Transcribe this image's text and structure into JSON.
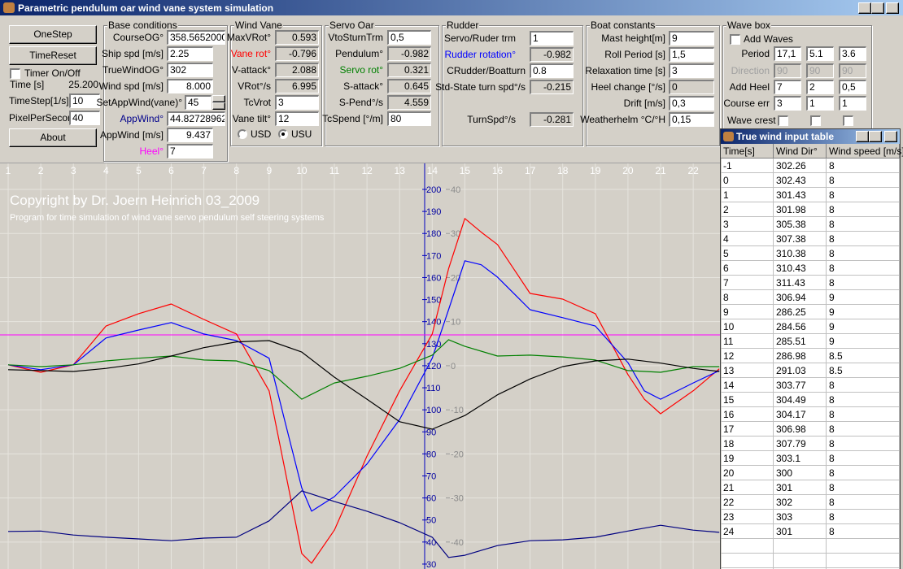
{
  "window_title": "Parametric pendulum oar wind vane system simulation",
  "controls": {
    "buttons": [
      "OneStep",
      "TimeReset",
      "About"
    ],
    "timer": "Timer On/Off",
    "time": {
      "label": "Time [s]",
      "value": "25.200"
    },
    "timestep": {
      "label": "TimeStep[1/s]",
      "value": "10"
    },
    "pixel_per_second": {
      "label": "PixelPerSecond",
      "value": "40"
    }
  },
  "groups": [
    {
      "title": "Base conditions",
      "fields": [
        {
          "label": "CourseOG°",
          "value": "358.5652000"
        },
        {
          "label": "Ship spd [m/s]",
          "value": "2.25"
        },
        {
          "label": "TrueWindOG°",
          "value": "302"
        },
        {
          "label": "Wind spd [m/s]",
          "value": "8.000"
        },
        {
          "label": "SetAppWind(vane)°",
          "value": "45"
        },
        {
          "label": "AppWind°",
          "value": "44.82728962"
        },
        {
          "label": "AppWind [m/s]",
          "value": "9.437"
        },
        {
          "label": "Heel°",
          "value": "7"
        }
      ]
    },
    {
      "title": "Wind Vane",
      "fields": [
        {
          "label": "MaxVRot°",
          "value": "0.593"
        },
        {
          "label": "Vane rot°",
          "value": "-0.796"
        },
        {
          "label": "V-attack°",
          "value": "2.088"
        },
        {
          "label": "VRot°/s",
          "value": "6.995"
        },
        {
          "label": "TcVrot",
          "value": "3"
        },
        {
          "label": "Vane tilt°",
          "value": "12"
        }
      ],
      "radios": [
        "USD",
        "USU"
      ]
    },
    {
      "title": "Servo Oar",
      "fields": [
        {
          "label": "VtoSturnTrm",
          "value": "0,5"
        },
        {
          "label": "Pendulum°",
          "value": "-0.982"
        },
        {
          "label": "Servo rot°",
          "value": "0.321"
        },
        {
          "label": "S-attack°",
          "value": "0.645"
        },
        {
          "label": "S-Pend°/s",
          "value": "4.559"
        },
        {
          "label": "TcSpend [°/m]",
          "value": "80"
        }
      ]
    },
    {
      "title": "Rudder",
      "fields": [
        {
          "label": "Servo/Ruder trm",
          "value": "1"
        },
        {
          "label": "Rudder rotation°",
          "value": "-0.982"
        },
        {
          "label": "CRudder/Boatturn",
          "value": "0.8"
        },
        {
          "label": "Std-State turn spd°/s",
          "value": "-0.215"
        },
        {
          "label": "TurnSpd°/s",
          "value": "-0.281"
        }
      ]
    },
    {
      "title": "Boat constants",
      "fields": [
        {
          "label": "Mast height[m]",
          "value": "9"
        },
        {
          "label": "Roll Period [s]",
          "value": "1,5"
        },
        {
          "label": "Relaxation time [s]",
          "value": "3"
        },
        {
          "label": "Heel change [°/s]",
          "value": "0"
        },
        {
          "label": "Drift [m/s]",
          "value": "0,3"
        },
        {
          "label": "Weatherhelm °C/°H",
          "value": "0,15"
        }
      ]
    }
  ],
  "wave_box": {
    "title": "Wave box",
    "add_waves": "Add Waves",
    "wave_crest": "Wave crest",
    "fields": [
      {
        "label": "Period",
        "values": [
          "17,1",
          "5.1",
          "3.6"
        ]
      },
      {
        "label": "Direction",
        "values": [
          "90",
          "90",
          "90"
        ]
      },
      {
        "label": "Add Heel",
        "values": [
          "7",
          "2",
          "0,5"
        ]
      },
      {
        "label": "Course err",
        "values": [
          "3",
          "1",
          "1"
        ]
      }
    ]
  },
  "wind_table": {
    "title": "True wind input table",
    "headers": [
      "Time[s]",
      "Wind Dir°",
      "Wind speed [m/s]"
    ],
    "rows": [
      [
        "-1",
        "302.26",
        "8"
      ],
      [
        "0",
        "302.43",
        "8"
      ],
      [
        "1",
        "301.43",
        "8"
      ],
      [
        "2",
        "301.98",
        "8"
      ],
      [
        "3",
        "305.38",
        "8"
      ],
      [
        "4",
        "307.38",
        "8"
      ],
      [
        "5",
        "310.38",
        "8"
      ],
      [
        "6",
        "310.43",
        "8"
      ],
      [
        "7",
        "311.43",
        "8"
      ],
      [
        "8",
        "306.94",
        "9"
      ],
      [
        "9",
        "286.25",
        "9"
      ],
      [
        "10",
        "284.56",
        "9"
      ],
      [
        "11",
        "285.51",
        "9"
      ],
      [
        "12",
        "286.98",
        "8.5"
      ],
      [
        "13",
        "291.03",
        "8.5"
      ],
      [
        "14",
        "303.77",
        "8"
      ],
      [
        "15",
        "304.49",
        "8"
      ],
      [
        "16",
        "304.17",
        "8"
      ],
      [
        "17",
        "306.98",
        "8"
      ],
      [
        "18",
        "307.79",
        "8"
      ],
      [
        "19",
        "303.1",
        "8"
      ],
      [
        "20",
        "300",
        "8"
      ],
      [
        "21",
        "301",
        "8"
      ],
      [
        "22",
        "302",
        "8"
      ],
      [
        "23",
        "303",
        "8"
      ],
      [
        "24",
        "301",
        "8"
      ]
    ]
  },
  "chart_data": {
    "type": "line",
    "title": "Copyright by Dr. Joern Heinrich 03_2009",
    "subtitle": "Program for time simulation of wind vane servo pendulum self steering systems",
    "xlim": [
      0.75,
      22.82
    ],
    "xticks": [
      1,
      2,
      3,
      4,
      5,
      6,
      7,
      8,
      9,
      10,
      11,
      12,
      13,
      14,
      15,
      16,
      17,
      18,
      19,
      20,
      21,
      22
    ],
    "ylim": [
      -46.3,
      45.9
    ],
    "yticks": [
      40,
      30,
      20,
      10,
      0,
      -10,
      -20,
      -30,
      -40
    ],
    "y2lim": [
      27.4,
      211.8
    ],
    "y2ticks": [
      200,
      190,
      180,
      170,
      160,
      150,
      140,
      130,
      120,
      110,
      100,
      90,
      80,
      70,
      60,
      50,
      40,
      30
    ],
    "grid": true,
    "reference_lines": [
      {
        "value": 7,
        "color": "#ff00ff"
      }
    ],
    "series": [
      {
        "color": "#ff0000",
        "x": [
          1,
          2,
          3,
          4,
          5,
          6,
          7,
          8,
          9,
          10,
          10.3,
          11,
          12,
          13,
          14,
          14.5,
          15,
          15.5,
          16,
          17,
          18,
          19,
          20,
          20.5,
          21,
          22,
          22.8
        ],
        "values": [
          0.2,
          -1.5,
          0.2,
          9.0,
          11.8,
          14.0,
          10.5,
          7.2,
          -5.7,
          -42.6,
          -44.8,
          -37.3,
          -20.5,
          -5.7,
          7.2,
          22.0,
          33.4,
          30.3,
          27.5,
          16.4,
          15.1,
          11.8,
          -2.0,
          -7.6,
          -10.9,
          -5.7,
          -0.7
        ]
      },
      {
        "color": "#0000ff",
        "x": [
          1,
          2,
          3,
          4,
          5,
          6,
          7,
          8,
          9,
          9.5,
          10,
          10.3,
          11,
          12,
          13,
          14,
          14.5,
          15,
          15.5,
          16,
          17,
          18,
          19,
          20,
          20.5,
          21,
          22,
          22.8
        ],
        "values": [
          0.2,
          -0.9,
          0.2,
          6.3,
          8.1,
          9.8,
          7.2,
          5.7,
          1.7,
          -13.1,
          -27.7,
          -33.0,
          -29.7,
          -22.3,
          -12.2,
          1.7,
          12.7,
          23.8,
          22.9,
          20.1,
          12.7,
          10.9,
          9.0,
          0.7,
          -5.7,
          -7.6,
          -3.9,
          -1.1
        ]
      },
      {
        "color": "#008000",
        "x": [
          1,
          2,
          3,
          4,
          5,
          6,
          7,
          8,
          9,
          10,
          11,
          12,
          13,
          14,
          14.5,
          15,
          16,
          17,
          18,
          19,
          20,
          21,
          22,
          22.8
        ],
        "values": [
          0.2,
          -0.2,
          0.2,
          1.1,
          1.7,
          2.2,
          1.3,
          1.1,
          -1.1,
          -7.6,
          -3.9,
          -2.4,
          -0.6,
          2.4,
          5.9,
          4.4,
          2.2,
          2.4,
          2.0,
          1.3,
          -1.1,
          -1.5,
          -0.2,
          -0.2
        ]
      },
      {
        "color": "#000000",
        "x": [
          1,
          2,
          3,
          4,
          5,
          6,
          7,
          8,
          9,
          10,
          11,
          12,
          13,
          14,
          15,
          16,
          17,
          18,
          19,
          20,
          21,
          22,
          22.8
        ],
        "values": [
          -0.9,
          -1.1,
          -1.3,
          -0.6,
          0.4,
          2.2,
          4.1,
          5.4,
          5.7,
          3.1,
          -2.6,
          -7.6,
          -12.7,
          -14.4,
          -11.3,
          -6.6,
          -3.0,
          -0.2,
          1.1,
          1.5,
          0.6,
          -0.6,
          -1.3
        ]
      },
      {
        "color": "#000080",
        "x": [
          1,
          2,
          3,
          4,
          5,
          6,
          7,
          8,
          9,
          10,
          11,
          12,
          13,
          14,
          14.5,
          15,
          16,
          17,
          18,
          19,
          20,
          21,
          22,
          22.8
        ],
        "values": [
          -37.6,
          -37.5,
          -38.4,
          -38.9,
          -39.3,
          -39.7,
          -39.1,
          -38.9,
          -35.2,
          -28.4,
          -30.8,
          -33.0,
          -35.6,
          -38.9,
          -43.5,
          -43.0,
          -40.8,
          -39.7,
          -39.5,
          -38.9,
          -37.5,
          -36.2,
          -37.3,
          -37.8
        ]
      }
    ]
  }
}
